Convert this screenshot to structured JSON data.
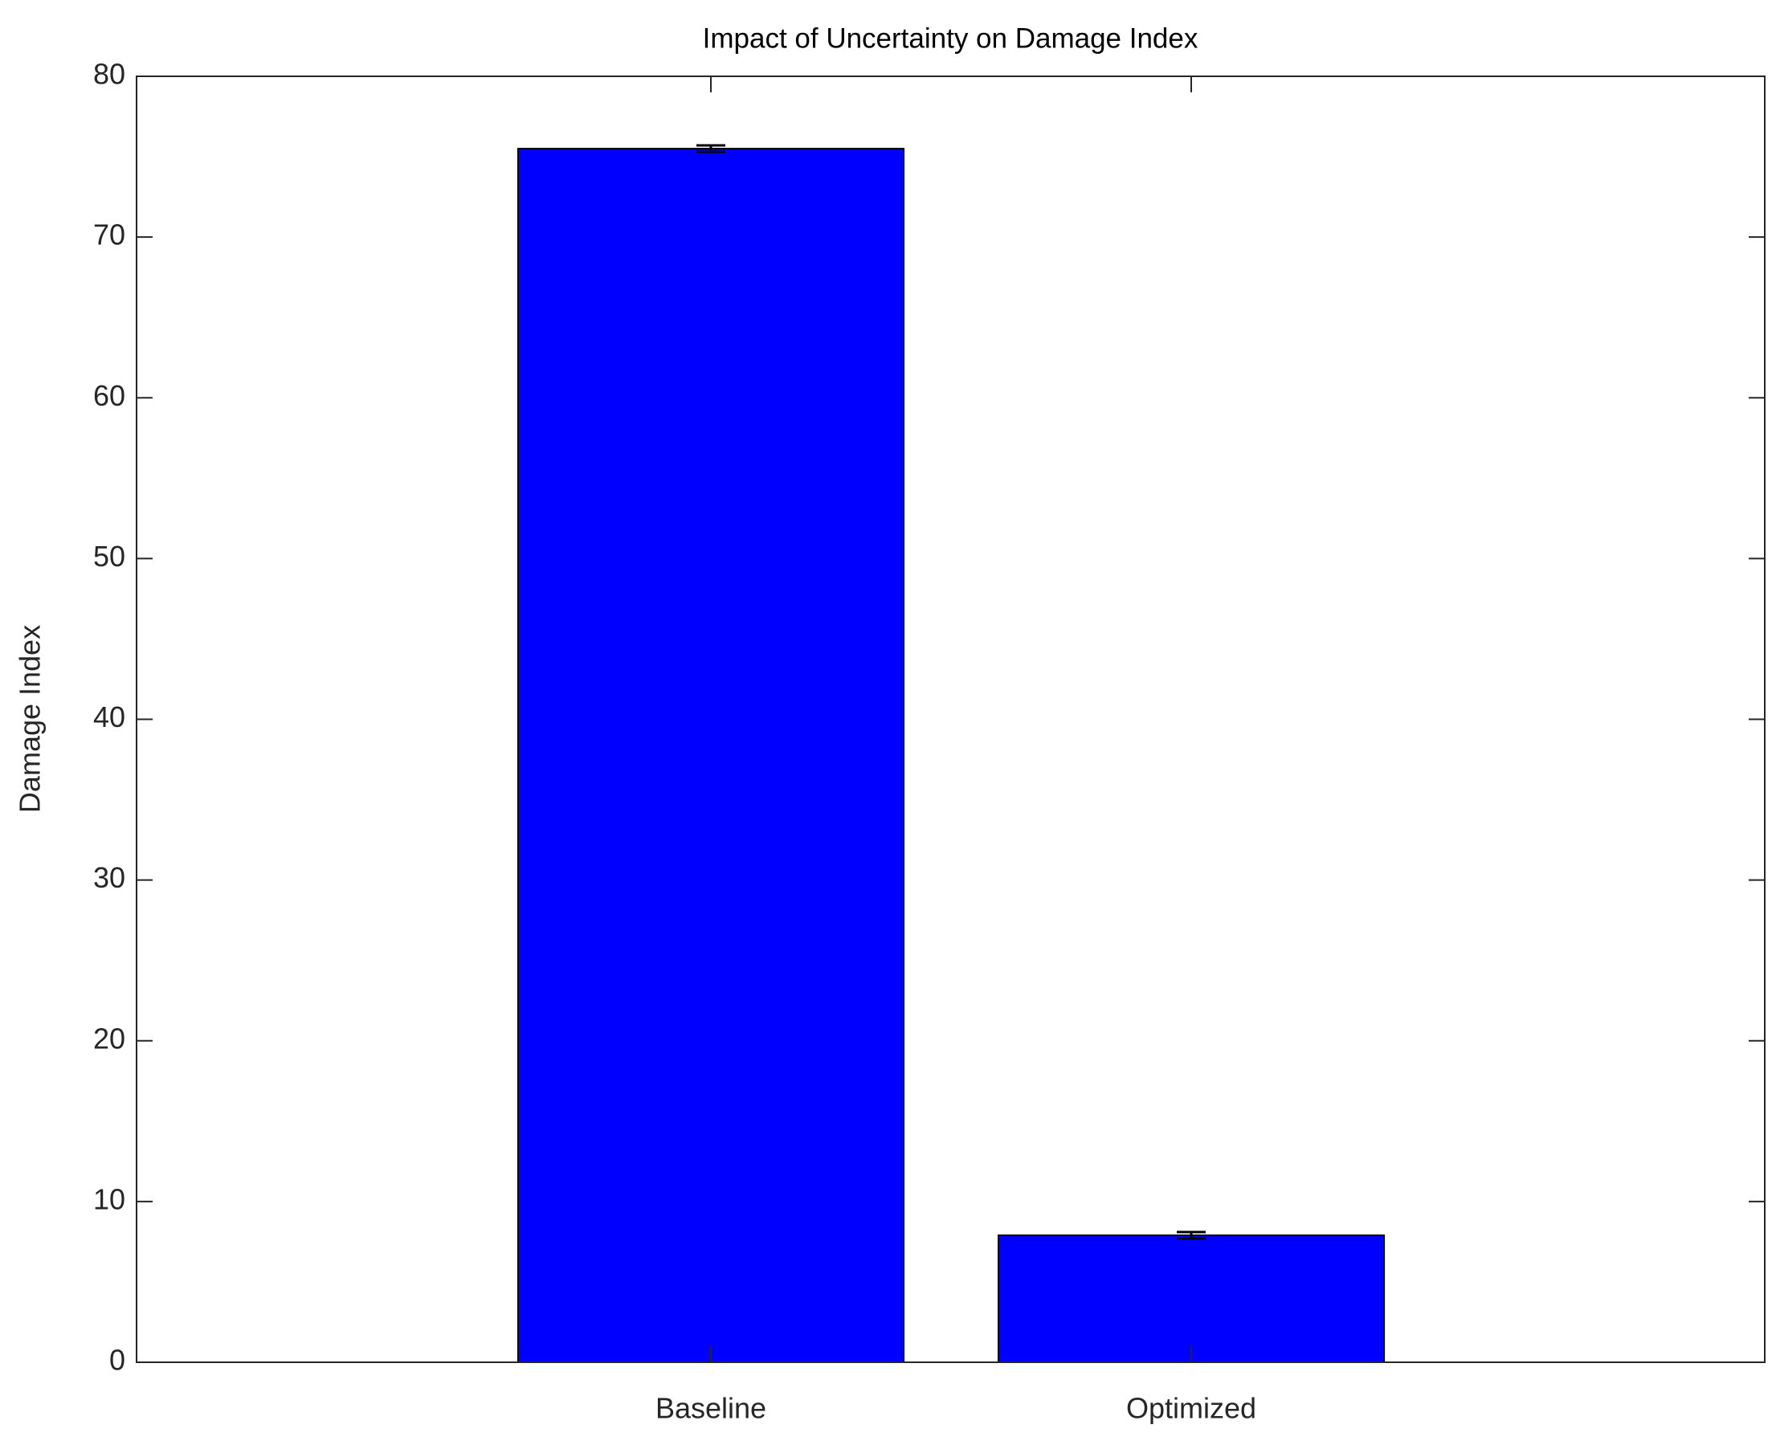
{
  "chart_data": {
    "type": "bar",
    "title": "Impact of Uncertainty on Damage Index",
    "ylabel": "Damage Index",
    "categories": [
      "Baseline",
      "Optimized"
    ],
    "values": [
      75.5,
      7.9
    ],
    "errors": [
      0.2,
      0.2
    ],
    "color": "#0000ff",
    "ylim": [
      0,
      80
    ],
    "yticks": [
      0,
      10,
      20,
      30,
      40,
      50,
      60,
      70,
      80
    ],
    "grid": false
  }
}
